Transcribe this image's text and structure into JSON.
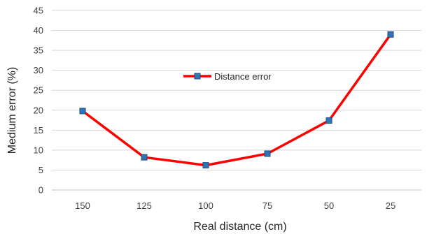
{
  "chart_data": {
    "type": "line",
    "title": "",
    "xlabel": "Real distance (cm)",
    "ylabel": "Medium error (%)",
    "categories": [
      "150",
      "125",
      "100",
      "75",
      "50",
      "25"
    ],
    "ylim": [
      0,
      45
    ],
    "yticks": [
      0,
      5,
      10,
      15,
      20,
      25,
      30,
      35,
      40,
      45
    ],
    "grid": true,
    "legend": "center",
    "series": [
      {
        "name": "Distance error",
        "values": [
          19.8,
          8.2,
          6.2,
          9.1,
          17.4,
          39.0
        ],
        "line_color": "#ff0000",
        "marker_color": "#2e75b6",
        "marker": "square"
      }
    ]
  }
}
